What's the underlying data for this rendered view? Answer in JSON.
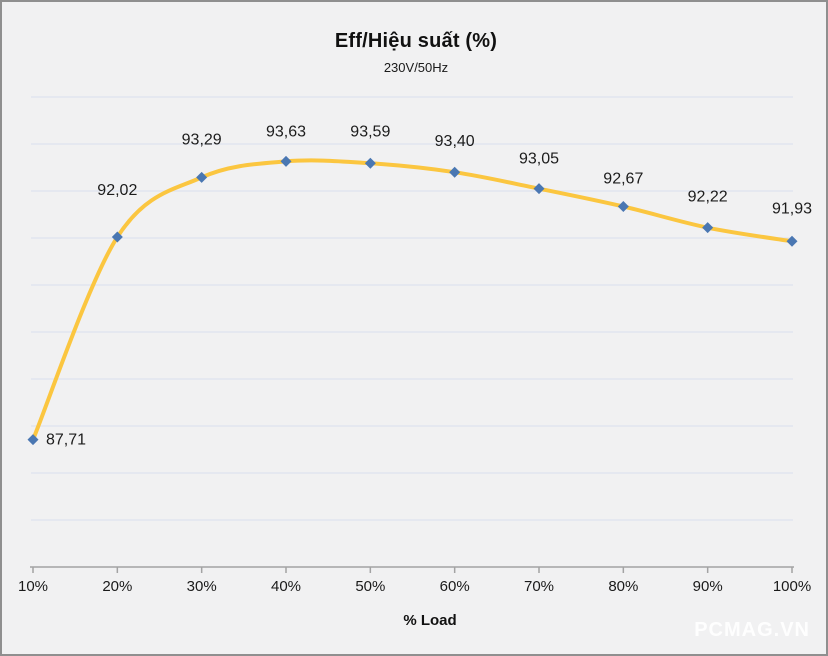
{
  "chart": {
    "title": "Eff/Hiệu suất (%)",
    "subtitle": "230V/50Hz",
    "xlabel": "% Load",
    "watermark": "PCMAG.VN"
  },
  "chart_data": {
    "type": "line",
    "title": "Eff/Hiệu suất (%)",
    "subtitle": "230V/50Hz",
    "xlabel": "% Load",
    "ylabel": "",
    "categories": [
      "10%",
      "20%",
      "30%",
      "40%",
      "50%",
      "60%",
      "70%",
      "80%",
      "90%",
      "100%"
    ],
    "series": [
      {
        "name": "Eff/Hiệu suất (%)",
        "values": [
          87.71,
          92.02,
          93.29,
          93.63,
          93.59,
          93.4,
          93.05,
          92.67,
          92.22,
          91.93
        ]
      }
    ],
    "data_labels": [
      "87,71",
      "92,02",
      "93,29",
      "93,63",
      "93,59",
      "93,40",
      "93,05",
      "92,67",
      "92,22",
      "91,93"
    ],
    "ylim": [
      85,
      95
    ],
    "grid": true,
    "grid_step": 1,
    "legend": false,
    "y_axis_labels_visible": false,
    "smooth_line": true,
    "colors": {
      "line": "#fbc640",
      "marker": "#4a77b2",
      "grid": "#e5e8f0",
      "axis": "#a3a3a3",
      "background": "#f1f1f2",
      "text": "#1a1a1a",
      "watermark": "#ffffff"
    }
  }
}
